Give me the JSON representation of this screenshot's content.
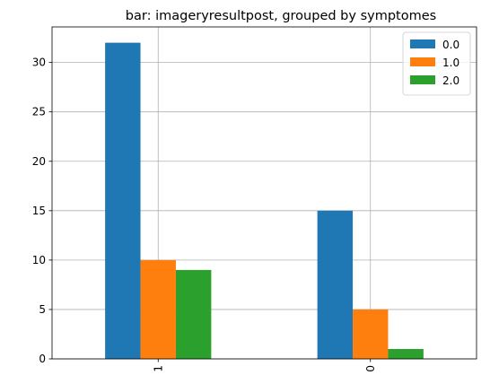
{
  "chart_data": {
    "type": "bar",
    "title": "bar: imageryresultpost, grouped by symptomes",
    "xlabel": "",
    "ylabel": "",
    "categories": [
      "1",
      "0"
    ],
    "series": [
      {
        "name": "0.0",
        "values": [
          32,
          15
        ],
        "color": "#1f77b4"
      },
      {
        "name": "1.0",
        "values": [
          10,
          5
        ],
        "color": "#ff7f0e"
      },
      {
        "name": "2.0",
        "values": [
          9,
          1
        ],
        "color": "#2ca02c"
      }
    ],
    "ylim": [
      0,
      33.6
    ],
    "yticks": [
      0,
      5,
      10,
      15,
      20,
      25,
      30
    ],
    "grid": true,
    "legend_position": "top-right"
  }
}
